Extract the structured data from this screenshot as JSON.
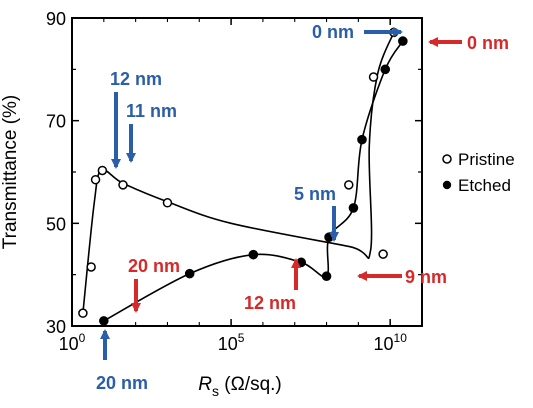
{
  "chart_data": {
    "type": "scatter",
    "title": "",
    "xlabel_symbol": "R",
    "xlabel_subscript": "s",
    "xlabel_unit": " (Ω/sq.)",
    "ylabel": "Transmittance (%)",
    "x_scale": "log10",
    "xlim": [
      1,
      100000000000.0
    ],
    "ylim": [
      30,
      90
    ],
    "x_ticks": [
      {
        "value": 1,
        "base": "10",
        "exp": "0"
      },
      {
        "value": 100000,
        "base": "10",
        "exp": "5"
      },
      {
        "value": 10000000000,
        "base": "10",
        "exp": "10"
      }
    ],
    "y_ticks": [
      30,
      50,
      70,
      90
    ],
    "legend": {
      "position": "right"
    },
    "series": [
      {
        "name": "Pristine",
        "marker": "open-circle",
        "color": "#000000",
        "points": [
          {
            "x": 2.2,
            "y": 32.5
          },
          {
            "x": 4.0,
            "y": 41.5
          },
          {
            "x": 5.5,
            "y": 58.5
          },
          {
            "x": 9.0,
            "y": 60.3
          },
          {
            "x": 40,
            "y": 57.5
          },
          {
            "x": 1000,
            "y": 54.0
          },
          {
            "x": 6000000000,
            "y": 44.0
          },
          {
            "x": 500000000,
            "y": 57.5
          },
          {
            "x": 3000000000,
            "y": 78.5
          },
          {
            "x": 13000000000,
            "y": 87.2
          }
        ]
      },
      {
        "name": "Etched",
        "marker": "filled-circle",
        "color": "#000000",
        "points": [
          {
            "x": 10,
            "y": 31.0
          },
          {
            "x": 5000,
            "y": 40.2
          },
          {
            "x": 500000,
            "y": 43.9
          },
          {
            "x": 16000000,
            "y": 42.4
          },
          {
            "x": 100000000,
            "y": 39.7
          },
          {
            "x": 120000000,
            "y": 47.3
          },
          {
            "x": 700000000,
            "y": 53.0
          },
          {
            "x": 1300000000,
            "y": 66.3
          },
          {
            "x": 7000000000,
            "y": 80.0
          },
          {
            "x": 25000000000,
            "y": 85.5
          }
        ]
      }
    ],
    "annotations": [
      {
        "text": "0 nm",
        "color": "#2b5ea8"
      },
      {
        "text": "0 nm",
        "color": "#d62a2a"
      },
      {
        "text": "12 nm",
        "color": "#2b5ea8"
      },
      {
        "text": "11 nm",
        "color": "#2b5ea8"
      },
      {
        "text": "5 nm",
        "color": "#2b5ea8"
      },
      {
        "text": "20 nm",
        "color": "#d62a2a"
      },
      {
        "text": "12 nm",
        "color": "#d62a2a"
      },
      {
        "text": "9 nm",
        "color": "#d62a2a"
      },
      {
        "text": "20 nm",
        "color": "#2b5ea8"
      }
    ]
  }
}
